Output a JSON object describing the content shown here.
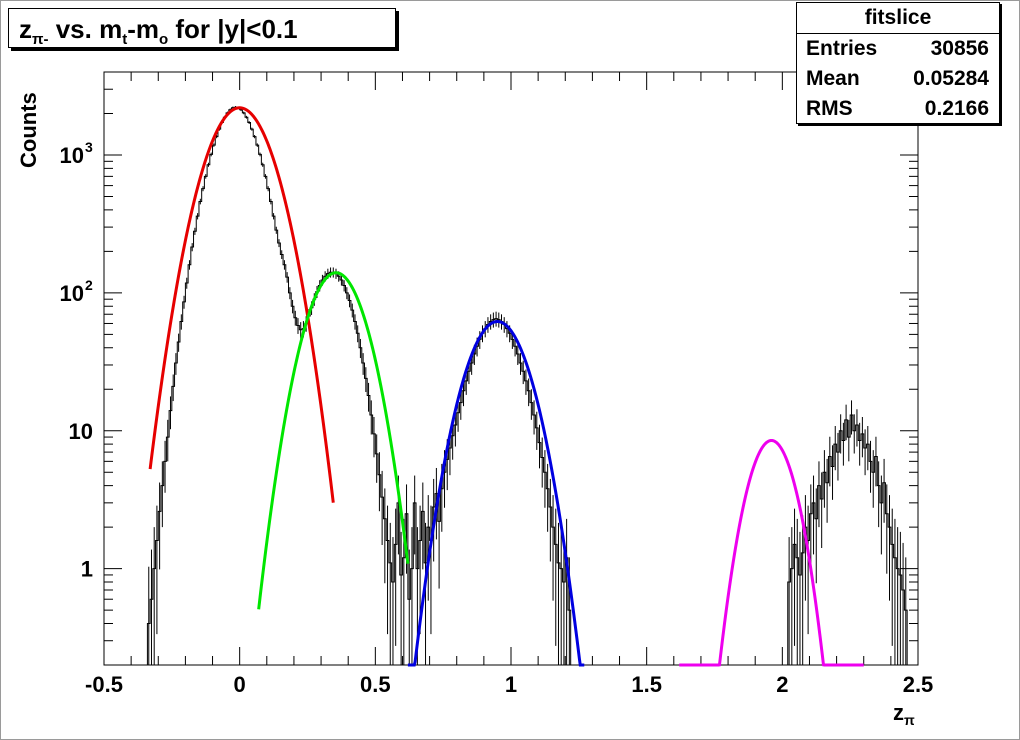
{
  "chart_data": {
    "type": "line",
    "title_main": "z",
    "title_sub": "π-",
    "title_rest": " vs. m",
    "title_sub2": "t",
    "title_mid": "-m",
    "title_sub3": "o",
    "title_tail": " for |y|<0.1",
    "xlabel_main": "z",
    "xlabel_sub": "π",
    "ylabel": "Counts",
    "xlim": [
      -0.5,
      2.5
    ],
    "ylim": [
      0.2,
      4000
    ],
    "yscale": "log",
    "grid": false,
    "x_ticks": [
      "-0.5",
      "0",
      "0.5",
      "1",
      "1.5",
      "2",
      "2.5"
    ],
    "y_ticks": [
      {
        "value": 1,
        "base": "1",
        "exp": ""
      },
      {
        "value": 10,
        "base": "10",
        "exp": ""
      },
      {
        "value": 100,
        "base": "10",
        "exp": "2"
      },
      {
        "value": 1000,
        "base": "10",
        "exp": "3"
      }
    ],
    "stats": {
      "name": "fitslice",
      "rows": [
        {
          "key": "Entries",
          "value": "30856"
        },
        {
          "key": "Mean",
          "value": "0.05284"
        },
        {
          "key": "RMS",
          "value": "0.2166"
        }
      ]
    },
    "fits": [
      {
        "color": "#e60000",
        "amplitude": 2200,
        "mean": 0.0,
        "sigma": 0.095,
        "range": [
          -0.33,
          0.345
        ]
      },
      {
        "color": "#00e600",
        "amplitude": 140,
        "mean": 0.355,
        "sigma": 0.085,
        "range": [
          0.07,
          0.62
        ]
      },
      {
        "color": "#0000e0",
        "amplitude": 62,
        "mean": 0.95,
        "sigma": 0.09,
        "range": [
          0.62,
          1.27
        ]
      },
      {
        "color": "#ee00ee",
        "amplitude": 8.5,
        "mean": 1.96,
        "sigma": 0.07,
        "range": [
          1.62,
          2.3
        ]
      }
    ],
    "histogram": {
      "color": "#000000",
      "bin_width": 0.01,
      "x_start": -0.34,
      "values": [
        0.4,
        0.6,
        1.0,
        1.6,
        2.6,
        4.0,
        6.0,
        9.0,
        14.0,
        21.0,
        31.0,
        44.0,
        62.0,
        86.0,
        118.0,
        160.0,
        215.0,
        280.0,
        360.0,
        460.0,
        570.0,
        700.0,
        850.0,
        1010.0,
        1180.0,
        1360.0,
        1540.0,
        1720.0,
        1880.0,
        2020.0,
        2130.0,
        2200.0,
        2220.0,
        2200.0,
        2130.0,
        2020.0,
        1880.0,
        1720.0,
        1540.0,
        1360.0,
        1180.0,
        1010.0,
        850.0,
        700.0,
        570.0,
        460.0,
        360.0,
        285.0,
        230.0,
        190.0,
        160.0,
        130.0,
        100.0,
        80.0,
        66.0,
        58.0,
        54.0,
        55.0,
        60.0,
        68.0,
        78.0,
        90.0,
        102.0,
        113.0,
        124.0,
        132.0,
        138.0,
        141.0,
        141.0,
        138.0,
        132.0,
        124.0,
        113.0,
        100.0,
        88.0,
        75.0,
        62.0,
        51.0,
        40.0,
        31.0,
        24.0,
        18.0,
        13.0,
        9.5,
        6.8,
        4.8,
        3.3,
        2.3,
        1.6,
        1.1,
        0.8,
        1.5,
        3.0,
        0.9,
        1.2,
        2.5,
        0.6,
        1.0,
        3.0,
        1.0,
        1.6,
        2.6,
        1.1,
        2.0,
        1.6,
        2.8,
        3.5,
        2.2,
        3.8,
        5.0,
        6.2,
        7.5,
        9.2,
        11.0,
        13.5,
        16.0,
        19.5,
        23.0,
        27.0,
        31.0,
        36.0,
        41.0,
        46.0,
        51.0,
        55.0,
        59.0,
        62.0,
        64.0,
        65.0,
        64.0,
        62.0,
        59.0,
        55.0,
        51.0,
        46.0,
        41.0,
        36.0,
        31.0,
        27.0,
        23.0,
        19.5,
        16.0,
        13.0,
        10.5,
        8.2,
        6.4,
        5.0,
        3.8,
        2.8,
        2.0,
        1.5,
        1.1,
        1.0,
        0.8,
        1.2,
        0.5,
        0.0,
        0.0,
        0.0,
        0.0,
        0.0,
        0.0,
        0.0,
        0.0,
        0.0,
        0.0,
        0.0,
        0.0,
        0.0,
        0.0,
        0.0,
        0.0,
        0.0,
        0.0,
        0.0,
        0.0,
        0.0,
        0.0,
        0.0,
        0.0,
        0.0,
        0.0,
        0.0,
        0.0,
        0.0,
        0.0,
        0.0,
        0.0,
        0.0,
        0.0,
        0.0,
        0.0,
        0.0,
        0.0,
        0.0,
        0.0,
        0.0,
        0.0,
        0.0,
        0.0,
        0.0,
        0.0,
        0.0,
        0.0,
        0.0,
        0.0,
        0.0,
        0.0,
        0.0,
        0.0,
        0.0,
        0.0,
        0.0,
        0.0,
        0.0,
        0.0,
        0.0,
        0.0,
        0.0,
        0.0,
        0.0,
        0.0,
        0.0,
        0.0,
        0.0,
        0.0,
        0.0,
        0.0,
        0.0,
        0.0,
        0.0,
        0.0,
        0.0,
        0.0,
        0.0,
        0.0,
        0.8,
        1.0,
        1.5,
        1.2,
        0.9,
        1.3,
        2.0,
        1.6,
        2.5,
        3.0,
        2.3,
        4.0,
        3.2,
        5.0,
        4.2,
        6.5,
        5.5,
        8.0,
        7.0,
        10.0,
        8.5,
        12.0,
        9.0,
        13.0,
        10.0,
        11.0,
        8.5,
        9.5,
        7.5,
        8.0,
        6.0,
        5.0,
        6.5,
        4.0,
        3.0,
        4.2,
        2.5,
        2.0,
        1.5,
        1.2,
        1.0,
        0.9,
        0.7,
        0.5,
        0.0,
        0.0,
        0.0,
        0.0
      ]
    }
  }
}
